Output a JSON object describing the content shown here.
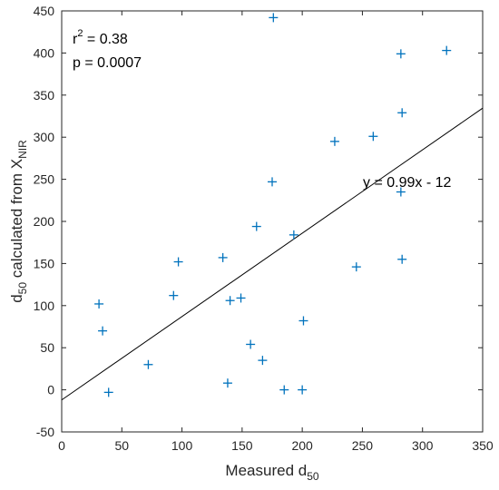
{
  "chart_data": {
    "type": "scatter",
    "title": "",
    "xlabel": {
      "main": "Measured d",
      "sub": "50"
    },
    "ylabel": {
      "prefix": "d",
      "sub1": "50",
      "middle": " calculated from X",
      "sub2": "NIR"
    },
    "xlim": [
      0,
      350
    ],
    "ylim": [
      -50,
      450
    ],
    "xticks": [
      0,
      50,
      100,
      150,
      200,
      250,
      300,
      350
    ],
    "yticks": [
      -50,
      0,
      50,
      100,
      150,
      200,
      250,
      300,
      350,
      400,
      450
    ],
    "grid": false,
    "marker": "+",
    "marker_color": "#0072BD",
    "series": [
      {
        "x": [
          31,
          34,
          39,
          72,
          93,
          97,
          134,
          138,
          140,
          149,
          157,
          162,
          167,
          175,
          176,
          185,
          193,
          200,
          201,
          227,
          245,
          259,
          282,
          282,
          283,
          283,
          320
        ],
        "y": [
          102,
          70,
          -3,
          30,
          112,
          152,
          157,
          8,
          106,
          109,
          54,
          194,
          35,
          247,
          442,
          0,
          184,
          0,
          82,
          295,
          146,
          301,
          399,
          235,
          329,
          155,
          403
        ]
      }
    ],
    "fit_line": {
      "slope": 0.99,
      "intercept": -12,
      "color": "#000000"
    },
    "annotations": {
      "r2_label": "r",
      "r2_exp": "2",
      "r2_value": " = 0.38",
      "p_text": "p = 0.0007",
      "equation": "y = 0.99x - 12"
    }
  }
}
